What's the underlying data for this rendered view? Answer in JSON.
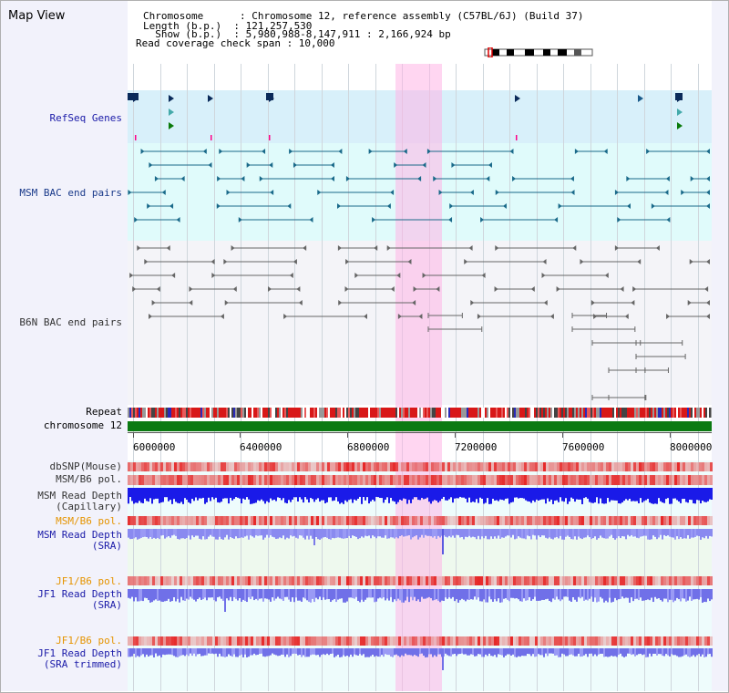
{
  "app": {
    "title": "Map View"
  },
  "header": {
    "line1": "Chromosome      : Chromosome 12, reference assembly (C57BL/6J) (Build 37)",
    "line2": "Length (b.p.)  : 121,257,530",
    "line3": "  Show (b.p.)  : 5,980,988-8,147,911 : 2,166,924 bp",
    "line4": "Read coverage check span : 10,000"
  },
  "tracks": {
    "refseq": "RefSeq Genes",
    "msm_bac": "MSM BAC end pairs",
    "b6n_bac": "B6N BAC end pairs",
    "repeat": "Repeat",
    "chromosome": "chromosome 12",
    "dbsnp": "dbSNP(Mouse)",
    "msm_b6_pol_1": "MSM/B6 pol.",
    "msm_read_depth_cap": "MSM Read Depth\n(Capillary)",
    "msm_b6_pol_2": "MSM/B6 pol.",
    "msm_read_depth_sra": "MSM Read Depth\n(SRA)",
    "jf1_b6_pol_1": "JF1/B6 pol.",
    "jf1_read_depth_sra": "JF1 Read Depth\n(SRA)",
    "jf1_b6_pol_2": "JF1/B6 pol.",
    "jf1_read_depth_trim": "JF1 Read Depth\n(SRA trimmed)"
  },
  "axis": {
    "ticks": [
      "6000000",
      "6400000",
      "6800000",
      "7200000",
      "7600000",
      "8000000"
    ]
  },
  "colors": {
    "refseq_label": "#1a1aa8",
    "msm_label": "#1a3a8a",
    "orange_label": "#e59400",
    "blue_label": "#1a1aa8",
    "highlight": "#ffb4e6",
    "chromosome": "#0b7a12"
  }
}
